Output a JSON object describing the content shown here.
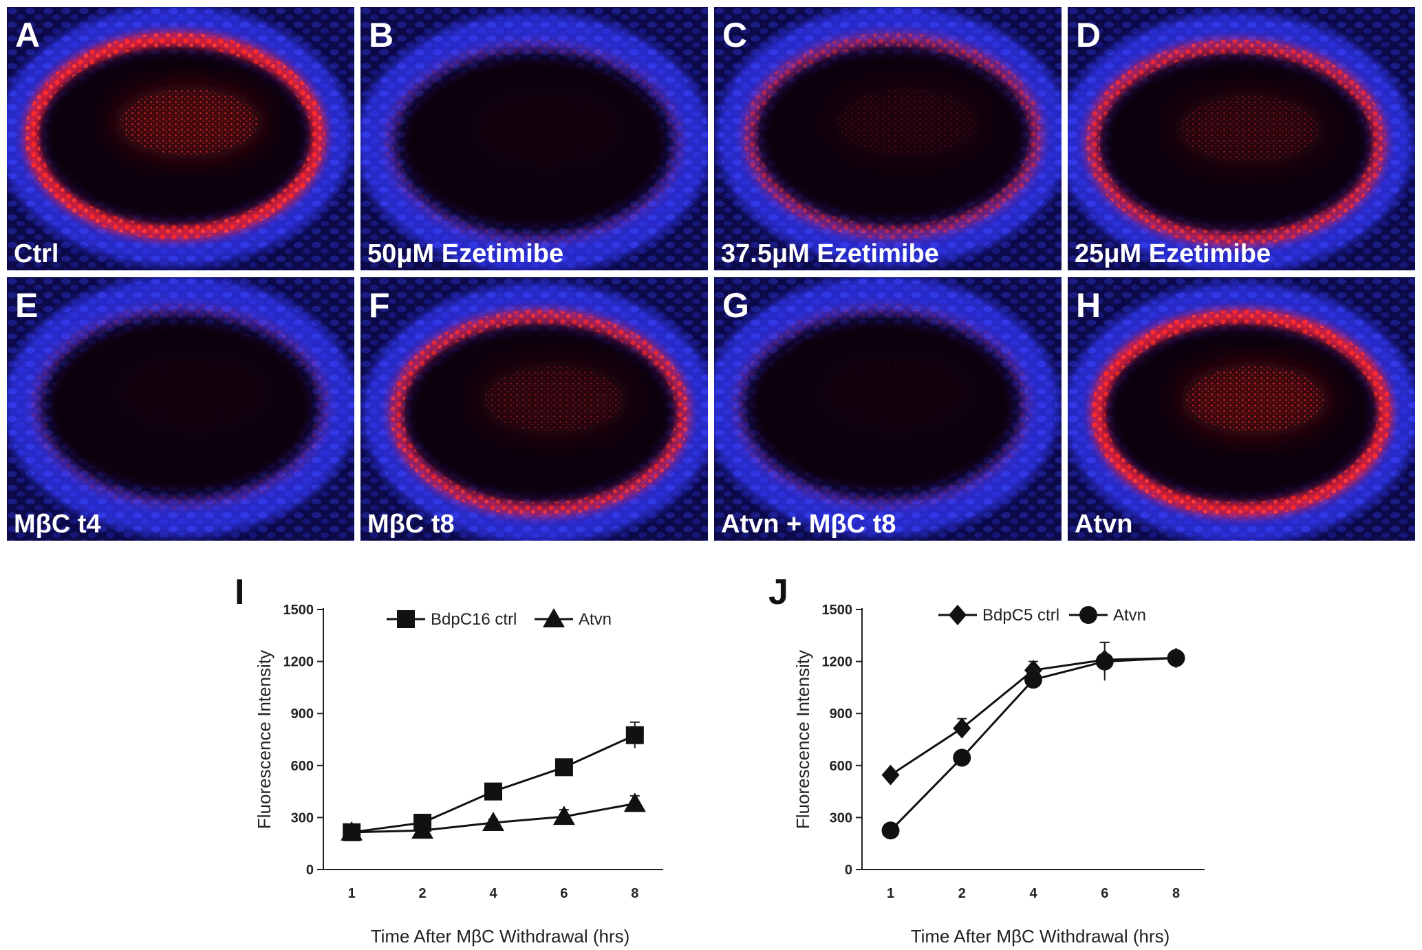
{
  "micrograph_panels": [
    {
      "letter": "A",
      "label": "Ctrl",
      "signal": "strong"
    },
    {
      "letter": "B",
      "label": "50μM Ezetimibe",
      "signal": "none"
    },
    {
      "letter": "C",
      "label": "37.5μM Ezetimibe",
      "signal": "weak"
    },
    {
      "letter": "D",
      "label": "25μM Ezetimibe",
      "signal": "medium"
    },
    {
      "letter": "E",
      "label": "MβC t4",
      "signal": "none"
    },
    {
      "letter": "F",
      "label": "MβC t8",
      "signal": "medium"
    },
    {
      "letter": "G",
      "label": "Atvn + MβC t8",
      "signal": "none"
    },
    {
      "letter": "H",
      "label": "Atvn",
      "signal": "strong"
    }
  ],
  "colors": {
    "nuclei_blue": "#2a2fd6",
    "stain_red": "#ff1e1e",
    "background": "#000000",
    "plot_line": "#111111"
  },
  "chart_data": [
    {
      "letter": "I",
      "type": "line",
      "categories": [
        "1",
        "2",
        "4",
        "6",
        "8"
      ],
      "xlabel": "Time After MβC Withdrawal (hrs)",
      "ylabel": "Fluorescence Intensity",
      "ylim": [
        0,
        1500
      ],
      "yticks": [
        0,
        300,
        600,
        900,
        1200,
        1500
      ],
      "legend_position": "top",
      "series": [
        {
          "name": "BdpC16 ctrl",
          "marker": "square",
          "values": [
            215,
            270,
            450,
            590,
            775
          ],
          "errors": [
            25,
            20,
            40,
            25,
            75
          ]
        },
        {
          "name": "Atvn",
          "marker": "triangle",
          "values": [
            215,
            225,
            270,
            305,
            380
          ],
          "errors": [
            15,
            15,
            20,
            40,
            45
          ]
        }
      ]
    },
    {
      "letter": "J",
      "type": "line",
      "categories": [
        "1",
        "2",
        "4",
        "6",
        "8"
      ],
      "xlabel": "Time After MβC Withdrawal (hrs)",
      "ylabel": "Fluorescence Intensity",
      "ylim": [
        0,
        1500
      ],
      "yticks": [
        0,
        300,
        600,
        900,
        1200,
        1500
      ],
      "legend_position": "top",
      "series": [
        {
          "name": "BdpC5 ctrl",
          "marker": "diamond",
          "values": [
            545,
            815,
            1150,
            1210,
            1220
          ],
          "errors": [
            25,
            55,
            50,
            100,
            20
          ]
        },
        {
          "name": "Atvn",
          "marker": "circle",
          "values": [
            225,
            645,
            1095,
            1200,
            1220
          ],
          "errors": [
            15,
            20,
            50,
            110,
            20
          ]
        }
      ]
    }
  ]
}
